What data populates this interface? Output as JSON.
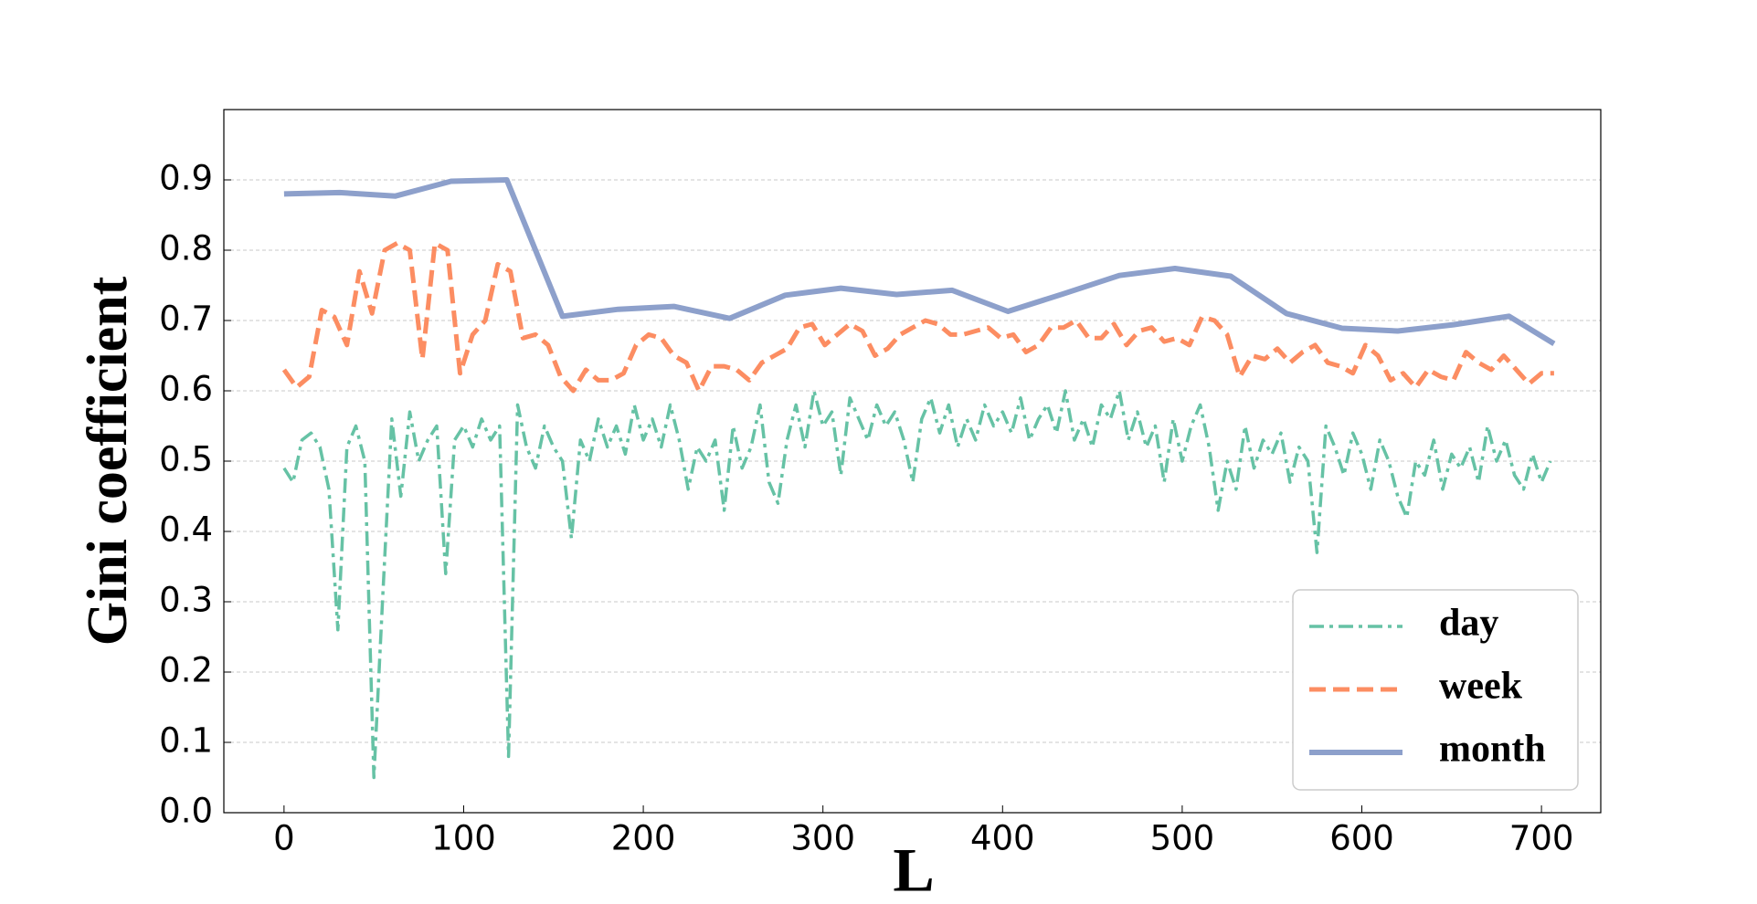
{
  "chart_data": {
    "type": "line",
    "xlabel": "L",
    "ylabel": "Gini coefficient",
    "xlim": [
      -33.5,
      733
    ],
    "ylim": [
      0,
      1
    ],
    "xticks": [
      0,
      100,
      200,
      300,
      400,
      500,
      600,
      700
    ],
    "yticks": [
      {
        "value": 0,
        "label": "0.0"
      },
      0.1,
      0.2,
      0.3,
      0.4,
      0.5,
      0.6,
      0.7,
      0.8,
      0.9
    ],
    "grid": true,
    "legend": "lower right",
    "series": [
      {
        "name": "day",
        "color": "#66c2a5",
        "linestyle": "dashdot",
        "x": [
          0,
          5,
          10,
          15,
          20,
          25,
          30,
          35,
          40,
          45,
          50,
          55,
          60,
          65,
          70,
          75,
          80,
          85,
          90,
          95,
          100,
          105,
          110,
          115,
          120,
          125,
          130,
          135,
          140,
          145,
          150,
          155,
          160,
          165,
          170,
          175,
          180,
          185,
          190,
          195,
          200,
          205,
          210,
          215,
          220,
          225,
          230,
          235,
          240,
          245,
          250,
          255,
          260,
          265,
          270,
          275,
          280,
          285,
          290,
          295,
          300,
          305,
          310,
          315,
          320,
          325,
          330,
          335,
          340,
          345,
          350,
          355,
          360,
          365,
          370,
          375,
          380,
          385,
          390,
          395,
          400,
          405,
          410,
          415,
          420,
          425,
          430,
          435,
          440,
          445,
          450,
          455,
          460,
          465,
          470,
          475,
          480,
          485,
          490,
          495,
          500,
          505,
          510,
          515,
          520,
          525,
          530,
          535,
          540,
          545,
          550,
          555,
          560,
          565,
          570,
          575,
          580,
          585,
          590,
          595,
          600,
          605,
          610,
          615,
          620,
          625,
          630,
          635,
          640,
          645,
          650,
          655,
          660,
          665,
          670,
          675,
          680,
          685,
          690,
          695,
          700,
          705
        ],
        "values": [
          0.49,
          0.47,
          0.53,
          0.54,
          0.52,
          0.46,
          0.26,
          0.52,
          0.55,
          0.5,
          0.05,
          0.31,
          0.56,
          0.45,
          0.57,
          0.5,
          0.53,
          0.55,
          0.34,
          0.53,
          0.55,
          0.52,
          0.56,
          0.53,
          0.55,
          0.08,
          0.58,
          0.52,
          0.49,
          0.55,
          0.52,
          0.5,
          0.39,
          0.53,
          0.5,
          0.56,
          0.52,
          0.55,
          0.51,
          0.58,
          0.53,
          0.56,
          0.52,
          0.58,
          0.53,
          0.46,
          0.52,
          0.5,
          0.53,
          0.43,
          0.55,
          0.49,
          0.52,
          0.58,
          0.47,
          0.44,
          0.53,
          0.58,
          0.52,
          0.6,
          0.55,
          0.57,
          0.48,
          0.59,
          0.56,
          0.53,
          0.58,
          0.55,
          0.57,
          0.53,
          0.47,
          0.56,
          0.59,
          0.54,
          0.58,
          0.52,
          0.56,
          0.53,
          0.58,
          0.55,
          0.57,
          0.54,
          0.59,
          0.53,
          0.56,
          0.58,
          0.54,
          0.6,
          0.53,
          0.56,
          0.52,
          0.58,
          0.56,
          0.6,
          0.53,
          0.57,
          0.52,
          0.55,
          0.47,
          0.56,
          0.5,
          0.55,
          0.58,
          0.52,
          0.43,
          0.5,
          0.46,
          0.55,
          0.49,
          0.53,
          0.51,
          0.54,
          0.47,
          0.52,
          0.5,
          0.37,
          0.55,
          0.52,
          0.48,
          0.54,
          0.51,
          0.46,
          0.53,
          0.5,
          0.45,
          0.42,
          0.5,
          0.48,
          0.53,
          0.46,
          0.51,
          0.49,
          0.52,
          0.47,
          0.55,
          0.5,
          0.53,
          0.48,
          0.46,
          0.51,
          0.47,
          0.5
        ]
      },
      {
        "name": "week",
        "color": "#fc8d62",
        "linestyle": "dashed",
        "x": [
          0,
          7,
          14,
          21,
          28,
          35,
          42,
          49,
          56,
          63,
          70,
          77,
          84,
          91,
          98,
          105,
          112,
          119,
          126,
          133,
          140,
          147,
          154,
          161,
          168,
          175,
          182,
          189,
          196,
          203,
          210,
          217,
          224,
          231,
          238,
          245,
          252,
          259,
          266,
          273,
          280,
          287,
          294,
          301,
          308,
          315,
          322,
          329,
          336,
          343,
          350,
          357,
          364,
          371,
          378,
          385,
          392,
          399,
          406,
          413,
          420,
          427,
          434,
          441,
          448,
          455,
          462,
          469,
          476,
          483,
          490,
          497,
          504,
          511,
          518,
          525,
          532,
          539,
          546,
          553,
          560,
          567,
          574,
          581,
          588,
          595,
          602,
          609,
          616,
          623,
          630,
          637,
          644,
          651,
          658,
          665,
          672,
          679,
          686,
          693,
          700,
          707
        ],
        "values": [
          0.63,
          0.605,
          0.62,
          0.715,
          0.705,
          0.665,
          0.77,
          0.71,
          0.8,
          0.81,
          0.8,
          0.645,
          0.81,
          0.8,
          0.625,
          0.68,
          0.7,
          0.78,
          0.77,
          0.675,
          0.68,
          0.665,
          0.62,
          0.6,
          0.63,
          0.615,
          0.615,
          0.625,
          0.665,
          0.68,
          0.675,
          0.65,
          0.64,
          0.6,
          0.635,
          0.635,
          0.63,
          0.615,
          0.64,
          0.65,
          0.66,
          0.69,
          0.695,
          0.665,
          0.68,
          0.695,
          0.685,
          0.65,
          0.66,
          0.68,
          0.69,
          0.7,
          0.695,
          0.68,
          0.68,
          0.685,
          0.69,
          0.675,
          0.68,
          0.655,
          0.665,
          0.69,
          0.69,
          0.7,
          0.675,
          0.675,
          0.695,
          0.665,
          0.685,
          0.69,
          0.67,
          0.675,
          0.665,
          0.705,
          0.7,
          0.68,
          0.62,
          0.65,
          0.645,
          0.66,
          0.64,
          0.655,
          0.665,
          0.64,
          0.635,
          0.625,
          0.665,
          0.65,
          0.615,
          0.625,
          0.605,
          0.63,
          0.62,
          0.615,
          0.655,
          0.64,
          0.63,
          0.65,
          0.63,
          0.61,
          0.625,
          0.625
        ]
      },
      {
        "name": "month",
        "color": "#8da0cb",
        "linestyle": "solid",
        "x": [
          0,
          31,
          62,
          93,
          124,
          155,
          186,
          217,
          248,
          279,
          310,
          341,
          372,
          403,
          434,
          465,
          496,
          527,
          558,
          589,
          620,
          651,
          682,
          707
        ],
        "values": [
          0.88,
          0.882,
          0.877,
          0.898,
          0.9,
          0.706,
          0.716,
          0.72,
          0.703,
          0.736,
          0.746,
          0.737,
          0.743,
          0.713,
          0.738,
          0.764,
          0.774,
          0.763,
          0.71,
          0.689,
          0.685,
          0.694,
          0.706,
          0.667
        ]
      }
    ]
  }
}
